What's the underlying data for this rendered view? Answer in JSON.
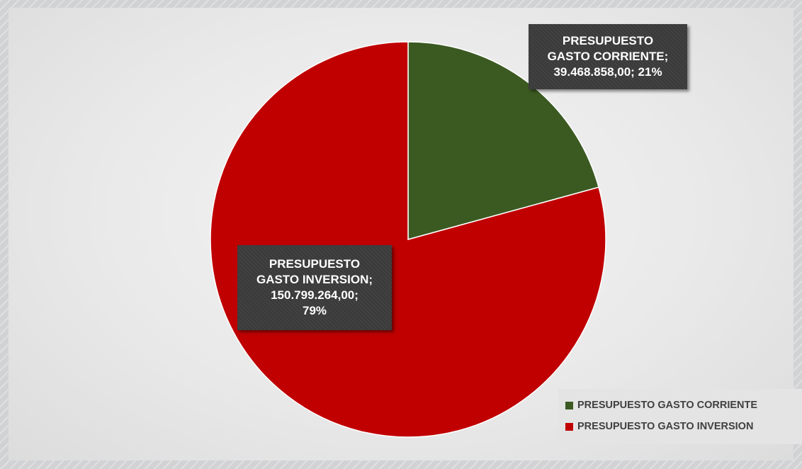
{
  "chart_data": {
    "type": "pie",
    "categories": [
      "PRESUPUESTO GASTO CORRIENTE",
      "PRESUPUESTO GASTO INVERSION"
    ],
    "values": [
      39468858.0,
      150799264.0
    ],
    "percentages": [
      21,
      79
    ],
    "colors": [
      "#3b5a22",
      "#c00000"
    ],
    "legend_position": "bottom-right",
    "data_labels": [
      {
        "lines": [
          "PRESUPUESTO",
          "GASTO CORRIENTE;",
          "39.468.858,00; 21%"
        ]
      },
      {
        "lines": [
          "PRESUPUESTO",
          "GASTO INVERSION;",
          "150.799.264,00;",
          "79%"
        ]
      }
    ]
  }
}
